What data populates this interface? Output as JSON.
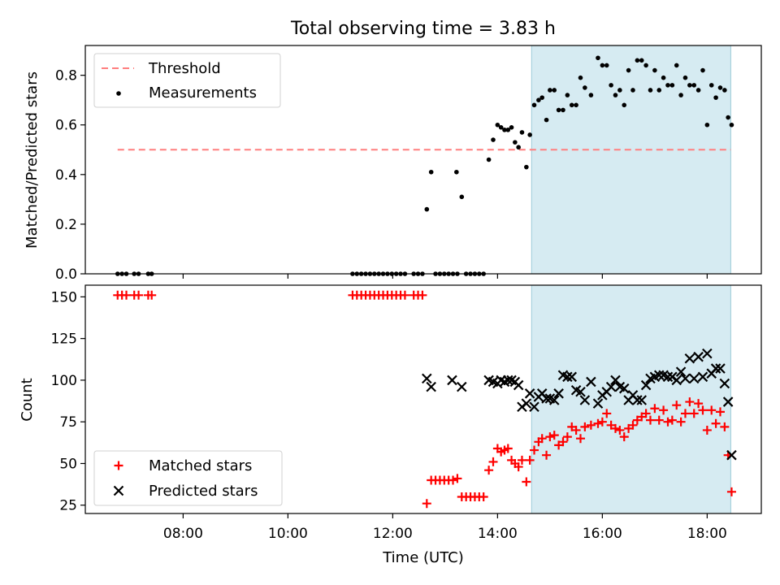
{
  "title": "Total observing time = 3.83 h",
  "chart_data": [
    {
      "type": "scatter",
      "panel": "top",
      "ylabel": "Matched/Predicted stars",
      "xlabel": "",
      "xlim": [
        "06:08",
        "19:02"
      ],
      "ylim": [
        0,
        0.92
      ],
      "yticks": [
        0.0,
        0.2,
        0.4,
        0.6,
        0.8
      ],
      "ytick_labels": [
        "0.0",
        "0.2",
        "0.4",
        "0.6",
        "0.8"
      ],
      "highlight_span": [
        "14:39",
        "18:27"
      ],
      "highlight_color": "#add8e6",
      "legend_position": "upper left",
      "series": [
        {
          "name": "Threshold",
          "kind": "line",
          "style": "dashed",
          "color": "#ff7f7f",
          "points": [
            [
              "06:45",
              0.5
            ],
            [
              "18:27",
              0.5
            ]
          ]
        },
        {
          "name": "Measurements",
          "kind": "scatter",
          "marker": "dot",
          "color": "#000000",
          "points": [
            [
              "06:45",
              0
            ],
            [
              "06:50",
              0
            ],
            [
              "06:55",
              0
            ],
            [
              "07:04",
              0
            ],
            [
              "07:09",
              0
            ],
            [
              "07:20",
              0
            ],
            [
              "07:24",
              0
            ],
            [
              "11:14",
              0
            ],
            [
              "11:19",
              0
            ],
            [
              "11:24",
              0
            ],
            [
              "11:29",
              0
            ],
            [
              "11:34",
              0
            ],
            [
              "11:39",
              0
            ],
            [
              "11:44",
              0
            ],
            [
              "11:49",
              0
            ],
            [
              "11:54",
              0
            ],
            [
              "11:59",
              0
            ],
            [
              "12:04",
              0
            ],
            [
              "12:09",
              0
            ],
            [
              "12:14",
              0
            ],
            [
              "12:24",
              0
            ],
            [
              "12:29",
              0
            ],
            [
              "12:34",
              0
            ],
            [
              "12:39",
              0.26
            ],
            [
              "12:44",
              0.41
            ],
            [
              "12:49",
              0
            ],
            [
              "12:54",
              0
            ],
            [
              "12:59",
              0
            ],
            [
              "13:04",
              0
            ],
            [
              "13:09",
              0
            ],
            [
              "13:13",
              0.41
            ],
            [
              "13:14",
              0
            ],
            [
              "13:19",
              0.31
            ],
            [
              "13:24",
              0
            ],
            [
              "13:29",
              0
            ],
            [
              "13:34",
              0
            ],
            [
              "13:39",
              0
            ],
            [
              "13:44",
              0
            ],
            [
              "13:50",
              0.46
            ],
            [
              "13:55",
              0.54
            ],
            [
              "14:00",
              0.6
            ],
            [
              "14:04",
              0.59
            ],
            [
              "14:08",
              0.58
            ],
            [
              "14:12",
              0.58
            ],
            [
              "14:16",
              0.59
            ],
            [
              "14:20",
              0.53
            ],
            [
              "14:24",
              0.51
            ],
            [
              "14:28",
              0.57
            ],
            [
              "14:33",
              0.43
            ],
            [
              "14:37",
              0.56
            ],
            [
              "14:42",
              0.68
            ],
            [
              "14:47",
              0.7
            ],
            [
              "14:51",
              0.71
            ],
            [
              "14:56",
              0.62
            ],
            [
              "15:00",
              0.74
            ],
            [
              "15:05",
              0.74
            ],
            [
              "15:10",
              0.66
            ],
            [
              "15:15",
              0.66
            ],
            [
              "15:20",
              0.72
            ],
            [
              "15:25",
              0.68
            ],
            [
              "15:30",
              0.68
            ],
            [
              "15:35",
              0.79
            ],
            [
              "15:40",
              0.75
            ],
            [
              "15:47",
              0.72
            ],
            [
              "15:55",
              0.87
            ],
            [
              "16:00",
              0.84
            ],
            [
              "16:05",
              0.84
            ],
            [
              "16:10",
              0.76
            ],
            [
              "16:15",
              0.72
            ],
            [
              "16:20",
              0.74
            ],
            [
              "16:25",
              0.68
            ],
            [
              "16:30",
              0.82
            ],
            [
              "16:35",
              0.74
            ],
            [
              "16:40",
              0.86
            ],
            [
              "16:45",
              0.86
            ],
            [
              "16:50",
              0.84
            ],
            [
              "16:55",
              0.74
            ],
            [
              "17:00",
              0.82
            ],
            [
              "17:05",
              0.74
            ],
            [
              "17:10",
              0.79
            ],
            [
              "17:15",
              0.76
            ],
            [
              "17:20",
              0.76
            ],
            [
              "17:25",
              0.84
            ],
            [
              "17:30",
              0.72
            ],
            [
              "17:35",
              0.79
            ],
            [
              "17:40",
              0.76
            ],
            [
              "17:45",
              0.76
            ],
            [
              "17:50",
              0.74
            ],
            [
              "17:55",
              0.82
            ],
            [
              "18:00",
              0.6
            ],
            [
              "18:05",
              0.76
            ],
            [
              "18:10",
              0.71
            ],
            [
              "18:15",
              0.75
            ],
            [
              "18:20",
              0.74
            ],
            [
              "18:24",
              0.63
            ],
            [
              "18:28",
              0.6
            ]
          ]
        }
      ]
    },
    {
      "type": "scatter",
      "panel": "bottom",
      "ylabel": "Count",
      "xlabel": "Time (UTC)",
      "xlim": [
        "06:08",
        "19:02"
      ],
      "ylim": [
        20,
        157
      ],
      "yticks": [
        25,
        50,
        75,
        100,
        125,
        150
      ],
      "ytick_labels": [
        "25",
        "50",
        "75",
        "100",
        "125",
        "150"
      ],
      "xticks": [
        "08:00",
        "10:00",
        "12:00",
        "14:00",
        "16:00",
        "18:00"
      ],
      "xtick_labels": [
        "08:00",
        "10:00",
        "12:00",
        "14:00",
        "16:00",
        "18:00"
      ],
      "highlight_span": [
        "14:39",
        "18:27"
      ],
      "highlight_color": "#add8e6",
      "legend_position": "lower left",
      "series": [
        {
          "name": "Matched stars",
          "kind": "scatter",
          "marker": "plus",
          "color": "#ff0000",
          "points": [
            [
              "06:45",
              151
            ],
            [
              "06:50",
              151
            ],
            [
              "06:55",
              151
            ],
            [
              "07:04",
              151
            ],
            [
              "07:09",
              151
            ],
            [
              "07:20",
              151
            ],
            [
              "07:24",
              151
            ],
            [
              "11:14",
              151
            ],
            [
              "11:19",
              151
            ],
            [
              "11:24",
              151
            ],
            [
              "11:29",
              151
            ],
            [
              "11:34",
              151
            ],
            [
              "11:39",
              151
            ],
            [
              "11:44",
              151
            ],
            [
              "11:49",
              151
            ],
            [
              "11:54",
              151
            ],
            [
              "11:59",
              151
            ],
            [
              "12:04",
              151
            ],
            [
              "12:09",
              151
            ],
            [
              "12:14",
              151
            ],
            [
              "12:24",
              151
            ],
            [
              "12:29",
              151
            ],
            [
              "12:34",
              151
            ],
            [
              "12:39",
              26
            ],
            [
              "12:44",
              40
            ],
            [
              "12:49",
              40
            ],
            [
              "12:54",
              40
            ],
            [
              "12:59",
              40
            ],
            [
              "13:04",
              40
            ],
            [
              "13:09",
              40
            ],
            [
              "13:14",
              41
            ],
            [
              "13:19",
              30
            ],
            [
              "13:24",
              30
            ],
            [
              "13:29",
              30
            ],
            [
              "13:34",
              30
            ],
            [
              "13:39",
              30
            ],
            [
              "13:44",
              30
            ],
            [
              "13:50",
              46
            ],
            [
              "13:55",
              51
            ],
            [
              "14:00",
              59
            ],
            [
              "14:04",
              57
            ],
            [
              "14:08",
              58
            ],
            [
              "14:12",
              59
            ],
            [
              "14:16",
              52
            ],
            [
              "14:20",
              50
            ],
            [
              "14:24",
              48
            ],
            [
              "14:28",
              52
            ],
            [
              "14:33",
              39
            ],
            [
              "14:37",
              52
            ],
            [
              "14:42",
              58
            ],
            [
              "14:47",
              63
            ],
            [
              "14:51",
              65
            ],
            [
              "14:56",
              55
            ],
            [
              "15:00",
              66
            ],
            [
              "15:05",
              67
            ],
            [
              "15:10",
              61
            ],
            [
              "15:15",
              63
            ],
            [
              "15:20",
              66
            ],
            [
              "15:25",
              72
            ],
            [
              "15:30",
              70
            ],
            [
              "15:35",
              65
            ],
            [
              "15:40",
              72
            ],
            [
              "15:47",
              73
            ],
            [
              "15:55",
              74
            ],
            [
              "16:00",
              75
            ],
            [
              "16:05",
              80
            ],
            [
              "16:10",
              73
            ],
            [
              "16:15",
              71
            ],
            [
              "16:20",
              70
            ],
            [
              "16:25",
              66
            ],
            [
              "16:30",
              71
            ],
            [
              "16:35",
              73
            ],
            [
              "16:40",
              76
            ],
            [
              "16:45",
              78
            ],
            [
              "16:50",
              80
            ],
            [
              "16:55",
              76
            ],
            [
              "17:00",
              83
            ],
            [
              "17:05",
              76
            ],
            [
              "17:10",
              82
            ],
            [
              "17:15",
              75
            ],
            [
              "17:20",
              76
            ],
            [
              "17:25",
              85
            ],
            [
              "17:30",
              75
            ],
            [
              "17:35",
              80
            ],
            [
              "17:40",
              87
            ],
            [
              "17:45",
              80
            ],
            [
              "17:50",
              86
            ],
            [
              "17:55",
              82
            ],
            [
              "18:00",
              70
            ],
            [
              "18:05",
              82
            ],
            [
              "18:10",
              74
            ],
            [
              "18:15",
              81
            ],
            [
              "18:20",
              72
            ],
            [
              "18:24",
              55
            ],
            [
              "18:28",
              33
            ]
          ]
        },
        {
          "name": "Predicted stars",
          "kind": "scatter",
          "marker": "x",
          "color": "#000000",
          "points": [
            [
              "12:39",
              101
            ],
            [
              "12:44",
              96
            ],
            [
              "13:08",
              100
            ],
            [
              "13:19",
              96
            ],
            [
              "13:50",
              100
            ],
            [
              "13:55",
              99
            ],
            [
              "14:00",
              98
            ],
            [
              "14:04",
              100
            ],
            [
              "14:08",
              99
            ],
            [
              "14:12",
              100
            ],
            [
              "14:16",
              100
            ],
            [
              "14:20",
              99
            ],
            [
              "14:24",
              97
            ],
            [
              "14:28",
              84
            ],
            [
              "14:33",
              86
            ],
            [
              "14:37",
              92
            ],
            [
              "14:42",
              84
            ],
            [
              "14:47",
              90
            ],
            [
              "14:51",
              92
            ],
            [
              "14:56",
              89
            ],
            [
              "15:00",
              89
            ],
            [
              "15:05",
              88
            ],
            [
              "15:10",
              92
            ],
            [
              "15:15",
              103
            ],
            [
              "15:20",
              102
            ],
            [
              "15:25",
              102
            ],
            [
              "15:30",
              94
            ],
            [
              "15:35",
              93
            ],
            [
              "15:40",
              88
            ],
            [
              "15:47",
              99
            ],
            [
              "15:55",
              86
            ],
            [
              "16:00",
              91
            ],
            [
              "16:05",
              93
            ],
            [
              "16:10",
              96
            ],
            [
              "16:15",
              100
            ],
            [
              "16:20",
              96
            ],
            [
              "16:25",
              95
            ],
            [
              "16:30",
              88
            ],
            [
              "16:35",
              91
            ],
            [
              "16:40",
              88
            ],
            [
              "16:45",
              88
            ],
            [
              "16:50",
              97
            ],
            [
              "16:55",
              101
            ],
            [
              "17:00",
              102
            ],
            [
              "17:05",
              103
            ],
            [
              "17:10",
              103
            ],
            [
              "17:15",
              102
            ],
            [
              "17:20",
              102
            ],
            [
              "17:25",
              100
            ],
            [
              "17:30",
              105
            ],
            [
              "17:35",
              101
            ],
            [
              "17:40",
              113
            ],
            [
              "17:45",
              101
            ],
            [
              "17:50",
              114
            ],
            [
              "17:55",
              102
            ],
            [
              "18:00",
              116
            ],
            [
              "18:05",
              104
            ],
            [
              "18:10",
              107
            ],
            [
              "18:15",
              107
            ],
            [
              "18:20",
              98
            ],
            [
              "18:24",
              87
            ],
            [
              "18:28",
              55
            ]
          ]
        }
      ]
    }
  ]
}
